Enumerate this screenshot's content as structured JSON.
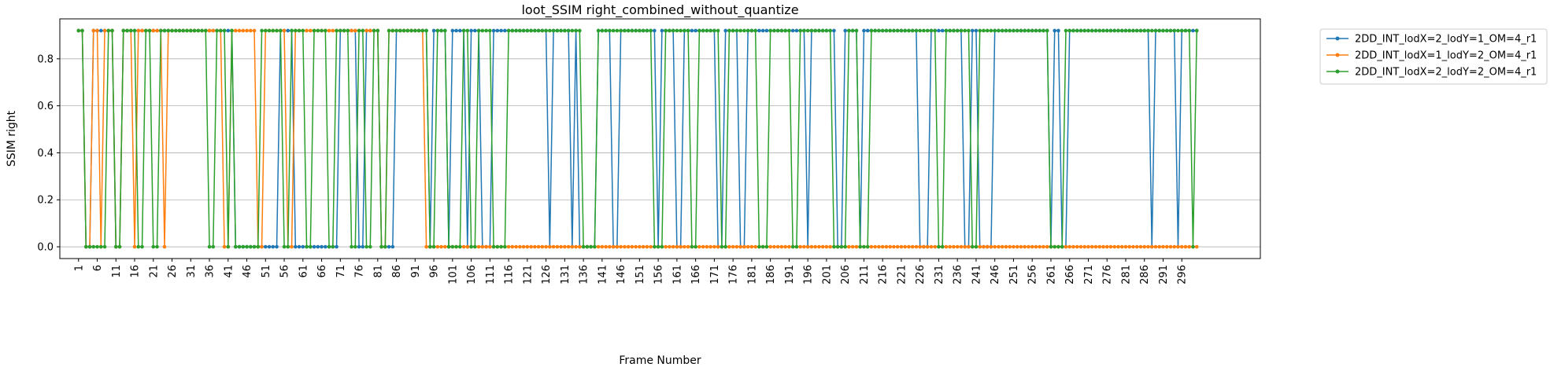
{
  "chart_data": {
    "type": "line",
    "title": "loot_SSIM right_combined_without_quantize",
    "xlabel": "Frame Number",
    "ylabel": "SSIM right",
    "xlim": [
      -4,
      317
    ],
    "ylim": [
      -0.05,
      0.97
    ],
    "grid": "y-axis only",
    "legend_position": "outside-top-right",
    "x_tick_labels": [
      "1",
      "6",
      "11",
      "16",
      "21",
      "26",
      "31",
      "36",
      "41",
      "46",
      "51",
      "56",
      "61",
      "66",
      "71",
      "76",
      "81",
      "86",
      "91",
      "96",
      "101",
      "106",
      "111",
      "116",
      "121",
      "126",
      "131",
      "136",
      "141",
      "146",
      "151",
      "156",
      "161",
      "166",
      "171",
      "176",
      "181",
      "186",
      "191",
      "196",
      "201",
      "206",
      "211",
      "216",
      "221",
      "226",
      "231",
      "236",
      "241",
      "246",
      "251",
      "256",
      "261",
      "266",
      "271",
      "276",
      "281",
      "286",
      "291",
      "296"
    ],
    "y_ticks": [
      0.0,
      0.2,
      0.4,
      0.6,
      0.8
    ],
    "y_tick_labels": [
      "0.0",
      "0.2",
      "0.4",
      "0.6",
      "0.8"
    ],
    "x_range": [
      1,
      300
    ],
    "high_level": 0.92,
    "low_level": 0.0,
    "series": [
      {
        "name": "2DD_INT_lodX=2_lodY=1_OM=4_r1",
        "color": "#1f77b4",
        "high_frames": [
          1,
          2,
          5,
          6,
          7,
          8,
          9,
          10,
          13,
          14,
          15,
          16,
          17,
          18,
          19,
          20,
          21,
          22,
          23,
          24,
          25,
          26,
          27,
          28,
          29,
          30,
          31,
          32,
          33,
          34,
          35,
          36,
          37,
          38,
          39,
          40,
          41,
          42,
          55,
          56,
          57,
          58,
          71,
          72,
          73,
          74,
          75,
          78,
          79,
          80,
          81,
          86,
          87,
          88,
          89,
          90,
          91,
          92,
          93,
          94,
          96,
          97,
          98,
          99,
          101,
          102,
          103,
          104,
          106,
          107,
          108,
          112,
          113,
          114,
          115,
          116,
          117,
          118,
          119,
          120,
          121,
          122,
          123,
          124,
          125,
          126,
          128,
          129,
          130,
          131,
          132,
          134,
          140,
          141,
          142,
          143,
          146,
          147,
          148,
          149,
          150,
          151,
          152,
          153,
          154,
          155,
          157,
          158,
          159,
          160,
          163,
          164,
          165,
          166,
          167,
          168,
          169,
          170,
          171,
          174,
          175,
          176,
          177,
          180,
          181,
          182,
          183,
          184,
          185,
          186,
          187,
          188,
          189,
          190,
          191,
          192,
          193,
          194,
          195,
          197,
          198,
          199,
          200,
          201,
          202,
          203,
          206,
          207,
          208,
          209,
          211,
          212,
          213,
          214,
          215,
          216,
          217,
          218,
          219,
          220,
          221,
          222,
          223,
          224,
          225,
          229,
          230,
          231,
          232,
          233,
          234,
          235,
          236,
          237,
          240,
          241,
          246,
          247,
          248,
          249,
          250,
          251,
          252,
          253,
          254,
          255,
          256,
          257,
          258,
          259,
          260,
          262,
          263,
          266,
          267,
          268,
          269,
          270,
          271,
          272,
          273,
          274,
          275,
          276,
          277,
          278,
          279,
          280,
          281,
          282,
          283,
          284,
          285,
          286,
          287,
          289,
          290,
          291,
          292,
          293,
          294,
          296,
          297,
          298,
          299,
          300
        ]
      },
      {
        "name": "2DD_INT_lodX=1_lodY=2_OM=4_r1",
        "color": "#ff7f0e",
        "high_frames": [
          1,
          2,
          5,
          6,
          8,
          9,
          10,
          13,
          14,
          15,
          17,
          18,
          19,
          20,
          21,
          22,
          23,
          25,
          26,
          27,
          28,
          29,
          30,
          31,
          32,
          33,
          34,
          35,
          36,
          37,
          38,
          39,
          42,
          43,
          44,
          45,
          46,
          47,
          48,
          51,
          52,
          53,
          54,
          55,
          56,
          59,
          60,
          61,
          62,
          63,
          64,
          65,
          66,
          67,
          68,
          69,
          70,
          71,
          72,
          73,
          74,
          75,
          76,
          77,
          78,
          79,
          80,
          81,
          84,
          85,
          86,
          87,
          88,
          89,
          90,
          91,
          92,
          93
        ]
      },
      {
        "name": "2DD_INT_lodX=2_lodY=2_OM=4_r1",
        "color": "#2ca02c",
        "high_frames": [
          1,
          2,
          9,
          10,
          13,
          14,
          15,
          16,
          19,
          20,
          23,
          24,
          25,
          26,
          27,
          28,
          29,
          30,
          31,
          32,
          33,
          34,
          35,
          38,
          39,
          40,
          42,
          50,
          51,
          52,
          53,
          54,
          55,
          58,
          59,
          60,
          61,
          64,
          65,
          66,
          67,
          70,
          71,
          72,
          73,
          76,
          77,
          80,
          81,
          84,
          85,
          86,
          87,
          88,
          89,
          90,
          91,
          92,
          93,
          94,
          97,
          98,
          99,
          104,
          105,
          108,
          109,
          110,
          111,
          116,
          117,
          118,
          119,
          120,
          121,
          122,
          123,
          124,
          125,
          126,
          127,
          128,
          129,
          130,
          131,
          132,
          133,
          134,
          135,
          140,
          141,
          142,
          143,
          144,
          145,
          146,
          147,
          148,
          149,
          150,
          151,
          152,
          153,
          154,
          158,
          159,
          160,
          161,
          162,
          163,
          164,
          167,
          168,
          169,
          170,
          171,
          172,
          175,
          176,
          177,
          178,
          179,
          180,
          181,
          182,
          186,
          187,
          188,
          189,
          190,
          191,
          194,
          195,
          196,
          197,
          198,
          199,
          200,
          201,
          202,
          207,
          208,
          209,
          213,
          214,
          215,
          216,
          217,
          218,
          219,
          220,
          221,
          222,
          223,
          224,
          225,
          226,
          227,
          228,
          229,
          230,
          233,
          234,
          235,
          236,
          237,
          238,
          239,
          242,
          243,
          244,
          245,
          246,
          247,
          248,
          249,
          250,
          251,
          252,
          253,
          254,
          255,
          256,
          257,
          258,
          259,
          260,
          265,
          266,
          267,
          268,
          269,
          270,
          271,
          272,
          273,
          274,
          275,
          276,
          277,
          278,
          279,
          280,
          281,
          282,
          283,
          284,
          285,
          286,
          287,
          288,
          289,
          290,
          291,
          292,
          293,
          294,
          295,
          296,
          297,
          298,
          300
        ]
      }
    ]
  }
}
